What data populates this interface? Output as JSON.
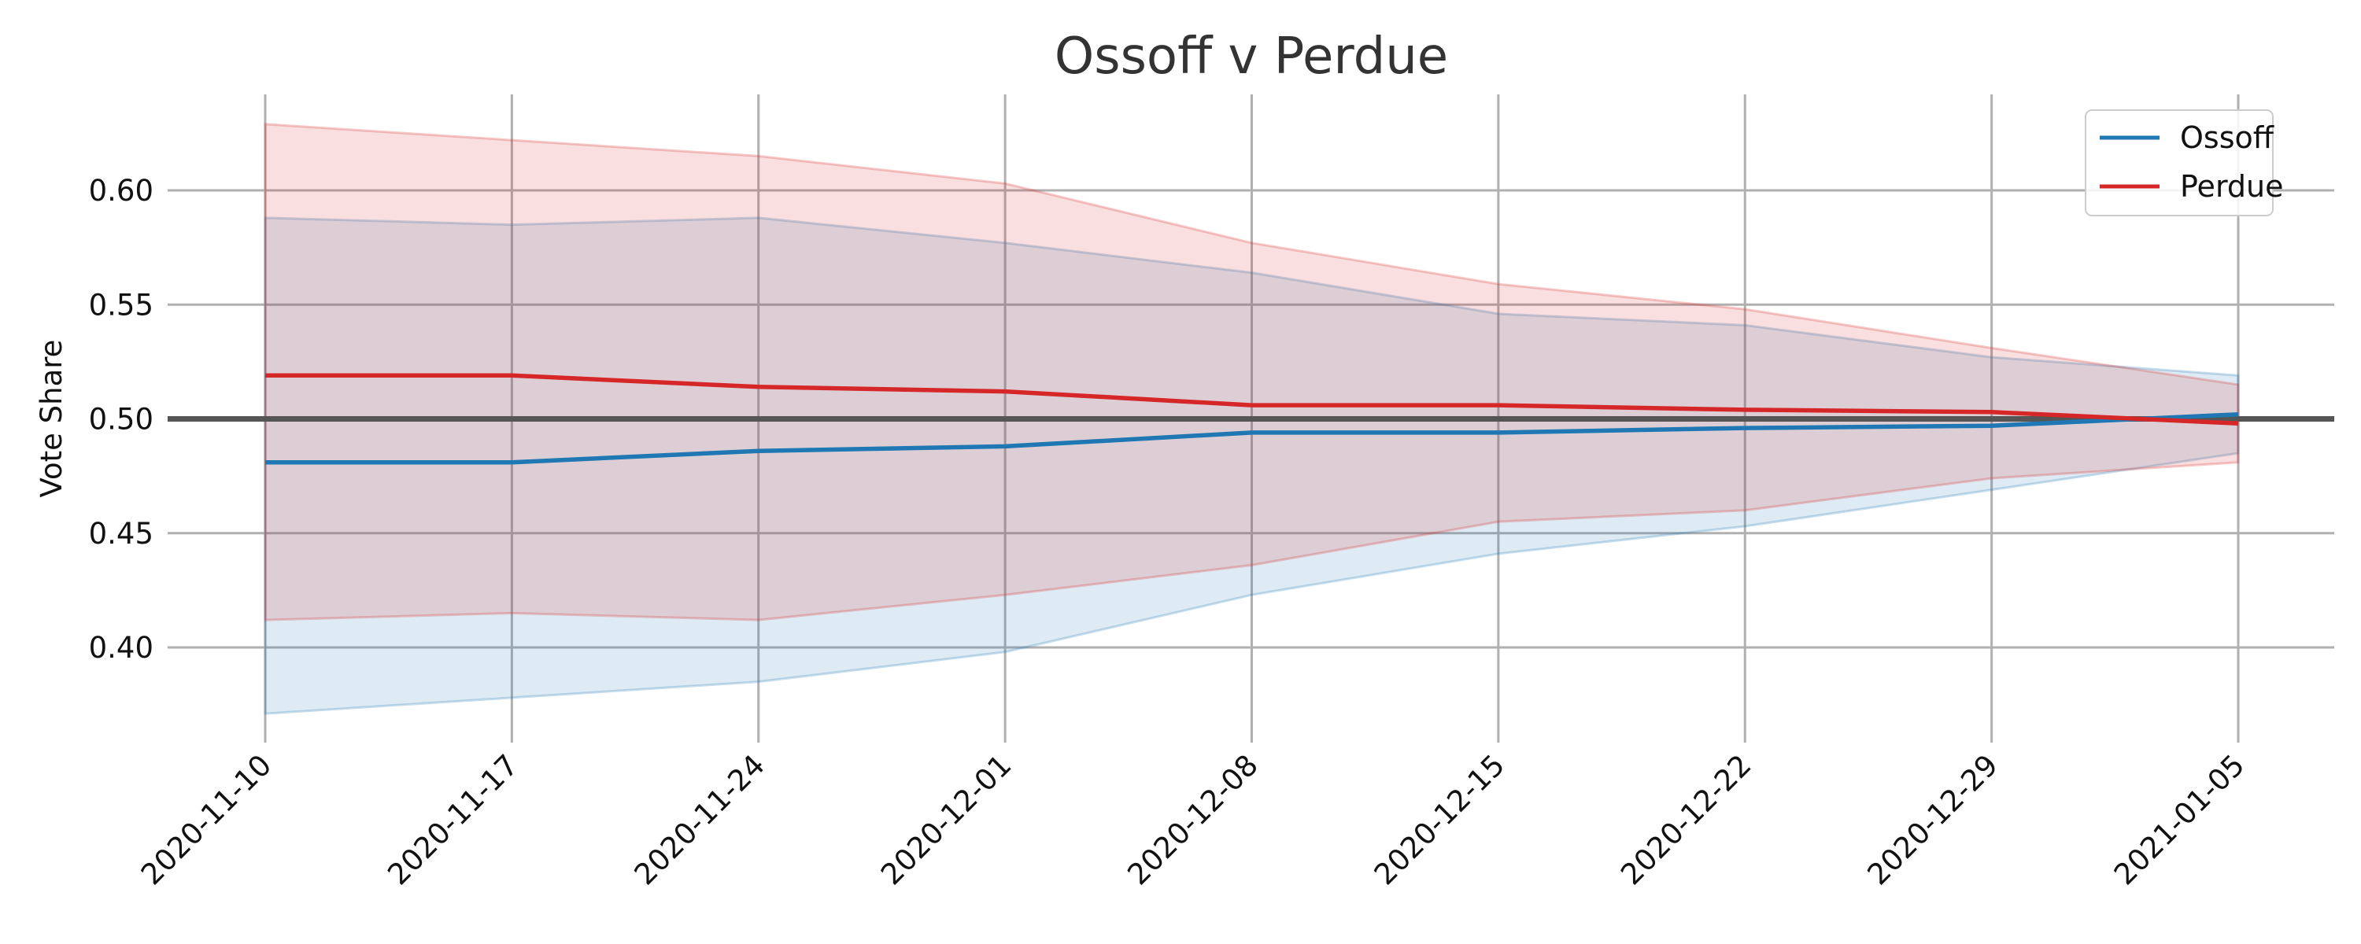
{
  "chart_data": {
    "type": "line",
    "title": "Ossoff v Perdue",
    "xlabel": "",
    "ylabel": "Vote Share",
    "x": [
      "2020-11-10",
      "2020-11-17",
      "2020-11-24",
      "2020-12-01",
      "2020-12-08",
      "2020-12-15",
      "2020-12-22",
      "2020-12-29",
      "2021-01-05"
    ],
    "yticks": [
      "0.40",
      "0.45",
      "0.50",
      "0.55",
      "0.60"
    ],
    "ylim": [
      0.36,
      0.64
    ],
    "grid": true,
    "legend_position": "top-right",
    "reference_line": 0.5,
    "series": [
      {
        "name": "Ossoff",
        "color": "#1f77b4",
        "values": [
          0.481,
          0.481,
          0.486,
          0.488,
          0.494,
          0.494,
          0.496,
          0.497,
          0.502
        ],
        "lower": [
          0.371,
          0.378,
          0.385,
          0.398,
          0.423,
          0.441,
          0.453,
          0.469,
          0.485
        ],
        "upper": [
          0.588,
          0.585,
          0.588,
          0.577,
          0.564,
          0.546,
          0.541,
          0.527,
          0.519
        ]
      },
      {
        "name": "Perdue",
        "color": "#d62728",
        "values": [
          0.519,
          0.519,
          0.514,
          0.512,
          0.506,
          0.506,
          0.504,
          0.503,
          0.498
        ],
        "lower": [
          0.412,
          0.415,
          0.412,
          0.423,
          0.436,
          0.455,
          0.46,
          0.474,
          0.481
        ],
        "upper": [
          0.629,
          0.622,
          0.615,
          0.603,
          0.577,
          0.559,
          0.548,
          0.531,
          0.515
        ]
      }
    ]
  }
}
